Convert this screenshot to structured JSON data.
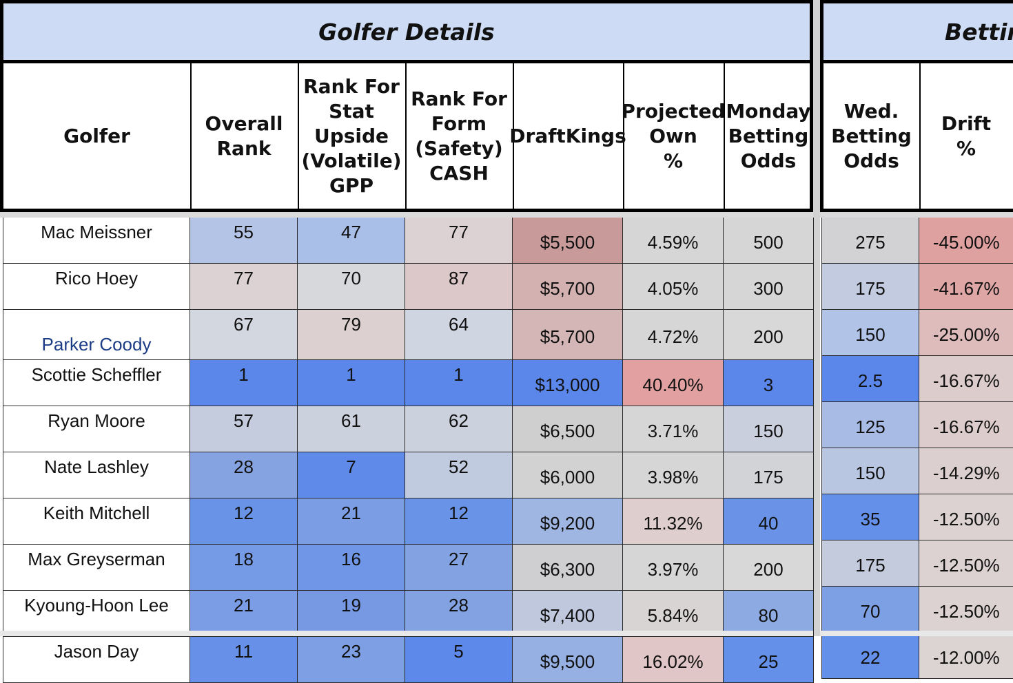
{
  "groups": {
    "golfer_details": "Golfer Details",
    "betting": "Betting"
  },
  "columns_left": [
    {
      "key": "golfer",
      "label": "Golfer"
    },
    {
      "key": "overall_rank",
      "label": "Overall\nRank"
    },
    {
      "key": "rank_stat",
      "label": "Rank For\nStat\nUpside\n(Volatile)\nGPP"
    },
    {
      "key": "rank_form",
      "label": "Rank For\nForm\n(Safety)\nCASH"
    },
    {
      "key": "draftkings",
      "label": "DraftKings"
    },
    {
      "key": "proj_own",
      "label": "Projected\nOwn\n%"
    },
    {
      "key": "monday_odds",
      "label": "Monday\nBetting\nOdds"
    }
  ],
  "columns_right": [
    {
      "key": "wed_odds",
      "label": "Wed.\nBetting\nOdds"
    },
    {
      "key": "drift",
      "label": "Drift\n%"
    }
  ],
  "rows": [
    {
      "golfer": "Mac Meissner",
      "overall_rank": "55",
      "rank_stat": "47",
      "rank_form": "77",
      "draftkings": "$5,500",
      "proj_own": "4.59%",
      "monday_odds": "500",
      "wed_odds": "275",
      "drift": "-45.00%",
      "colors": {
        "overall_rank": "#b3c4e6",
        "rank_stat": "#a9bfe8",
        "rank_form": "#dcd2d3",
        "draftkings": "#c99a9a",
        "proj_own": "#d6d6d6",
        "monday_odds": "#d6d6d6",
        "wed_odds": "#d2d2d4",
        "drift": "#dfa0a0"
      }
    },
    {
      "golfer": "Rico Hoey",
      "overall_rank": "77",
      "rank_stat": "70",
      "rank_form": "87",
      "draftkings": "$5,700",
      "proj_own": "4.05%",
      "monday_odds": "300",
      "wed_odds": "175",
      "drift": "-41.67%",
      "colors": {
        "overall_rank": "#dcd2d3",
        "rank_stat": "#d6d8dc",
        "rank_form": "#dcc8c9",
        "draftkings": "#d4b1b1",
        "proj_own": "#d6d6d6",
        "monday_odds": "#d6d6d6",
        "wed_odds": "#c2cbe0",
        "drift": "#dfa6a6"
      }
    },
    {
      "golfer": "Parker Coody",
      "highlight": true,
      "overall_rank": "67",
      "rank_stat": "79",
      "rank_form": "64",
      "draftkings": "$5,700",
      "proj_own": "4.72%",
      "monday_odds": "200",
      "wed_odds": "150",
      "drift": "-25.00%",
      "colors": {
        "overall_rank": "#d3d7df",
        "rank_stat": "#dcd0d1",
        "rank_form": "#cfd5e1",
        "draftkings": "#d4b6b6",
        "proj_own": "#d6d6d6",
        "monday_odds": "#d8d8d8",
        "wed_odds": "#b1c3e6",
        "drift": "#dfbcbc"
      }
    },
    {
      "golfer": "Scottie Scheffler",
      "overall_rank": "1",
      "rank_stat": "1",
      "rank_form": "1",
      "draftkings": "$13,000",
      "proj_own": "40.40%",
      "monday_odds": "3",
      "wed_odds": "2.5",
      "drift": "-16.67%",
      "colors": {
        "overall_rank": "#5b87eb",
        "rank_stat": "#5b87eb",
        "rank_form": "#5b87eb",
        "draftkings": "#5b87eb",
        "proj_own": "#e2a0a0",
        "monday_odds": "#5b87eb",
        "wed_odds": "#5b87eb",
        "drift": "#dccccc"
      }
    },
    {
      "golfer": "Ryan Moore",
      "overall_rank": "57",
      "rank_stat": "61",
      "rank_form": "62",
      "draftkings": "$6,500",
      "proj_own": "3.71%",
      "monday_odds": "150",
      "wed_odds": "125",
      "drift": "-16.67%",
      "colors": {
        "overall_rank": "#c4ccdd",
        "rank_stat": "#ccd2dd",
        "rank_form": "#ccd2dd",
        "draftkings": "#cfcfd0",
        "proj_own": "#d6d6d6",
        "monday_odds": "#c9cfdc",
        "wed_odds": "#a7bbe5",
        "drift": "#dccccc"
      }
    },
    {
      "golfer": "Nate Lashley",
      "overall_rank": "28",
      "rank_stat": "7",
      "rank_form": "52",
      "draftkings": "$6,000",
      "proj_own": "3.98%",
      "monday_odds": "175",
      "wed_odds": "150",
      "drift": "-14.29%",
      "colors": {
        "overall_rank": "#86a3e1",
        "rank_stat": "#5f8aea",
        "rank_form": "#c0cbe0",
        "draftkings": "#d2d2d2",
        "proj_own": "#d6d6d6",
        "monday_odds": "#d2d3d7",
        "wed_odds": "#b8c6e2",
        "drift": "#dccfcf"
      }
    },
    {
      "golfer": "Keith Mitchell",
      "overall_rank": "12",
      "rank_stat": "21",
      "rank_form": "12",
      "draftkings": "$9,200",
      "proj_own": "11.32%",
      "monday_odds": "40",
      "wed_odds": "35",
      "drift": "-12.50%",
      "colors": {
        "overall_rank": "#6993e7",
        "rank_stat": "#7b9de4",
        "rank_form": "#6993e7",
        "draftkings": "#9fb5e2",
        "proj_own": "#dfcece",
        "monday_odds": "#6a93e8",
        "wed_odds": "#6590e9",
        "drift": "#dcd2d2"
      }
    },
    {
      "golfer": "Max Greyserman",
      "overall_rank": "18",
      "rank_stat": "16",
      "rank_form": "27",
      "draftkings": "$6,300",
      "proj_own": "3.97%",
      "monday_odds": "200",
      "wed_odds": "175",
      "drift": "-12.50%",
      "colors": {
        "overall_rank": "#759be6",
        "rank_stat": "#7097e7",
        "rank_form": "#83a2e2",
        "draftkings": "#cfcfd1",
        "proj_own": "#d6d6d6",
        "monday_odds": "#d8d8d8",
        "wed_odds": "#c4cbdc",
        "drift": "#dcd2d2"
      }
    },
    {
      "golfer": "Kyoung-Hoon Lee",
      "overall_rank": "21",
      "rank_stat": "19",
      "rank_form": "28",
      "draftkings": "$7,400",
      "proj_own": "5.84%",
      "monday_odds": "80",
      "wed_odds": "70",
      "drift": "-12.50%",
      "colors": {
        "overall_rank": "#7a9de5",
        "rank_stat": "#7799e4",
        "rank_form": "#83a2e2",
        "draftkings": "#bfc8dc",
        "proj_own": "#d8d4d4",
        "monday_odds": "#8eaae3",
        "wed_odds": "#7d9fe4",
        "drift": "#dcd2d2"
      }
    },
    {
      "golfer": "Jason Day",
      "overall_rank": "11",
      "rank_stat": "23",
      "rank_form": "5",
      "draftkings": "$9,500",
      "proj_own": "16.02%",
      "monday_odds": "25",
      "wed_odds": "22",
      "drift": "-12.00%",
      "colors": {
        "overall_rank": "#6791e8",
        "rank_stat": "#7e9fe4",
        "rank_form": "#5d89ea",
        "draftkings": "#97b0e3",
        "proj_own": "#e0c6c6",
        "monday_odds": "#6590e9",
        "wed_odds": "#6590e9",
        "drift": "#dcd3d3"
      }
    }
  ]
}
